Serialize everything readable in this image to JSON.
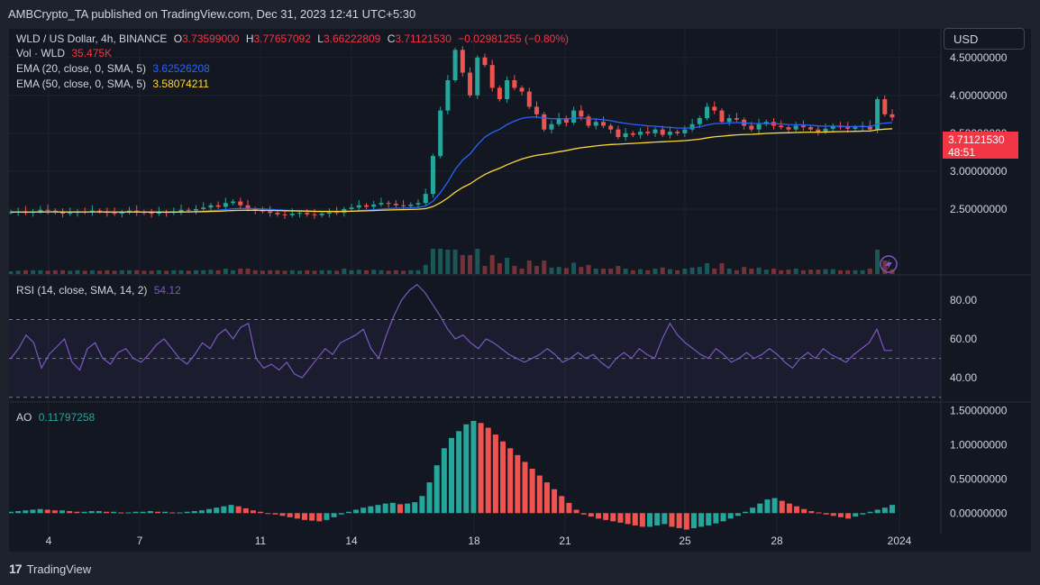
{
  "header": {
    "publisher": "AMBCrypto_TA published on TradingView.com, Dec 31, 2023 12:41 UTC+5:30"
  },
  "legend": {
    "symbol": "WLD / US Dollar, 4h, BINANCE",
    "o_label": "O",
    "o": "3.73599000",
    "h_label": "H",
    "h": "3.77657092",
    "l_label": "L",
    "l": "3.66222809",
    "c_label": "C",
    "c": "3.71121530",
    "change": "−0.02981255 (−0.80%)",
    "vol_label": "Vol · WLD",
    "vol": "35.475K",
    "ema20_label": "EMA (20, close, 0, SMA, 5)",
    "ema20": "3.62526208",
    "ema50_label": "EMA (50, close, 0, SMA, 5)",
    "ema50": "3.58074211",
    "rsi_label": "RSI (14, close, SMA, 14, 2)",
    "rsi": "54.12",
    "ao_label": "AO",
    "ao": "0.11797258"
  },
  "currency": "USD",
  "price_tag": {
    "price": "3.71121530",
    "countdown": "48:51"
  },
  "footer": {
    "brand": "TradingView"
  },
  "colors": {
    "up": "#26a69a",
    "down": "#ef5350",
    "ema20": "#2962ff",
    "ema50": "#fdd835",
    "rsi": "#7e57c2",
    "bg": "#131722"
  },
  "chart_data": [
    {
      "type": "candlestick",
      "title": "WLD / US Dollar, 4h, BINANCE",
      "x_ticks": [
        "4",
        "7",
        "11",
        "14",
        "18",
        "21",
        "25",
        "28",
        "2024"
      ],
      "y_ticks": [
        "2.50000000",
        "3.00000000",
        "3.50000000",
        "4.00000000",
        "4.50000000"
      ],
      "ylim": [
        2.0,
        4.85
      ],
      "close_series": [
        2.46,
        2.47,
        2.45,
        2.47,
        2.49,
        2.48,
        2.46,
        2.44,
        2.45,
        2.47,
        2.46,
        2.48,
        2.47,
        2.45,
        2.44,
        2.46,
        2.48,
        2.46,
        2.45,
        2.44,
        2.46,
        2.45,
        2.47,
        2.49,
        2.48,
        2.5,
        2.52,
        2.55,
        2.53,
        2.58,
        2.6,
        2.55,
        2.5,
        2.48,
        2.47,
        2.45,
        2.43,
        2.42,
        2.44,
        2.45,
        2.43,
        2.42,
        2.44,
        2.46,
        2.45,
        2.5,
        2.52,
        2.55,
        2.53,
        2.56,
        2.58,
        2.57,
        2.55,
        2.54,
        2.56,
        2.58,
        2.7,
        3.2,
        3.8,
        4.2,
        4.6,
        4.3,
        4.0,
        4.5,
        4.4,
        4.1,
        3.95,
        4.2,
        4.1,
        4.05,
        3.85,
        3.75,
        3.55,
        3.62,
        3.7,
        3.64,
        3.8,
        3.72,
        3.6,
        3.65,
        3.6,
        3.55,
        3.45,
        3.5,
        3.48,
        3.52,
        3.5,
        3.55,
        3.48,
        3.52,
        3.5,
        3.55,
        3.62,
        3.7,
        3.85,
        3.8,
        3.65,
        3.7,
        3.68,
        3.6,
        3.55,
        3.62,
        3.65,
        3.6,
        3.58,
        3.55,
        3.6,
        3.58,
        3.55,
        3.52,
        3.56,
        3.6,
        3.58,
        3.56,
        3.58,
        3.6,
        3.55,
        3.95,
        3.75,
        3.71
      ],
      "ema20_last": 3.62526208,
      "ema50_last": 3.58074211,
      "volume_last": "35.475K"
    },
    {
      "type": "line",
      "title": "RSI (14, close, SMA, 14, 2)",
      "y_ticks": [
        "40.00",
        "60.00",
        "80.00"
      ],
      "ylim": [
        28,
        92
      ],
      "bands": [
        30,
        50,
        70
      ],
      "values": [
        50,
        55,
        62,
        58,
        45,
        52,
        56,
        60,
        48,
        44,
        55,
        58,
        50,
        47,
        53,
        55,
        50,
        48,
        52,
        57,
        60,
        55,
        50,
        47,
        52,
        58,
        55,
        62,
        65,
        60,
        66,
        68,
        50,
        45,
        47,
        44,
        48,
        42,
        40,
        45,
        50,
        55,
        52,
        58,
        60,
        62,
        65,
        55,
        50,
        62,
        72,
        80,
        85,
        88,
        84,
        78,
        72,
        65,
        60,
        62,
        58,
        55,
        60,
        58,
        55,
        52,
        50,
        48,
        50,
        52,
        55,
        52,
        48,
        50,
        53,
        50,
        52,
        48,
        45,
        50,
        53,
        50,
        55,
        52,
        50,
        60,
        68,
        62,
        58,
        55,
        52,
        50,
        55,
        52,
        48,
        50,
        53,
        50,
        52,
        55,
        52,
        48,
        45,
        50,
        53,
        50,
        55,
        52,
        50,
        48,
        52,
        55,
        58,
        65,
        54,
        54.12
      ]
    },
    {
      "type": "bar",
      "title": "AO",
      "y_ticks": [
        "0.00000000",
        "0.50000000",
        "1.00000000",
        "1.50000000"
      ],
      "ylim": [
        -0.3,
        1.6
      ],
      "values": [
        0.02,
        0.03,
        0.04,
        0.05,
        0.06,
        0.05,
        0.04,
        0.04,
        0.03,
        0.02,
        0.02,
        0.03,
        0.03,
        0.02,
        0.02,
        0.01,
        0.01,
        0.02,
        0.02,
        0.03,
        0.02,
        0.02,
        0.01,
        0.01,
        0.02,
        0.03,
        0.04,
        0.06,
        0.08,
        0.1,
        0.12,
        0.1,
        0.07,
        0.04,
        0.02,
        0.0,
        -0.02,
        -0.04,
        -0.06,
        -0.08,
        -0.1,
        -0.11,
        -0.12,
        -0.1,
        -0.06,
        -0.02,
        0.02,
        0.05,
        0.08,
        0.1,
        0.12,
        0.14,
        0.15,
        0.13,
        0.14,
        0.16,
        0.25,
        0.45,
        0.7,
        0.95,
        1.1,
        1.2,
        1.3,
        1.35,
        1.32,
        1.25,
        1.15,
        1.05,
        0.95,
        0.85,
        0.75,
        0.65,
        0.55,
        0.45,
        0.35,
        0.25,
        0.15,
        0.05,
        -0.02,
        -0.05,
        -0.08,
        -0.1,
        -0.12,
        -0.14,
        -0.16,
        -0.18,
        -0.2,
        -0.2,
        -0.18,
        -0.16,
        -0.2,
        -0.22,
        -0.24,
        -0.22,
        -0.2,
        -0.18,
        -0.15,
        -0.12,
        -0.08,
        -0.04,
        0.02,
        0.08,
        0.14,
        0.2,
        0.22,
        0.18,
        0.14,
        0.1,
        0.06,
        0.03,
        0.01,
        -0.02,
        -0.04,
        -0.06,
        -0.08,
        -0.05,
        -0.02,
        0.02,
        0.05,
        0.08,
        0.12
      ]
    }
  ]
}
